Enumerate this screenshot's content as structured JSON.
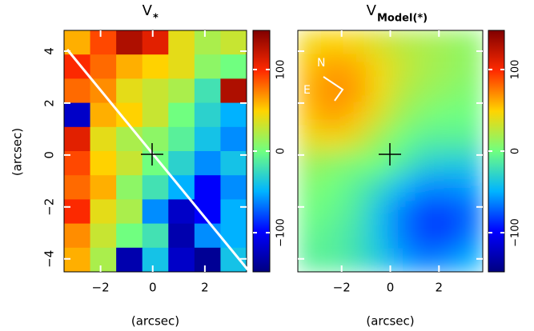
{
  "chart_data": [
    {
      "type": "heatmap",
      "title": "V",
      "title_subscript": "*",
      "xlabel": "(arcsec)",
      "ylabel": "(arcsec)",
      "xlim": [
        -3.4,
        3.6
      ],
      "ylim": [
        -4.5,
        4.8
      ],
      "xticks": [
        -2,
        0,
        2
      ],
      "yticks": [
        -4,
        -2,
        0,
        2,
        4
      ],
      "values": [
        [
          60,
          90,
          130,
          110,
          40,
          20,
          30
        ],
        [
          100,
          80,
          60,
          50,
          40,
          10,
          0
        ],
        [
          80,
          70,
          40,
          30,
          20,
          -20,
          130
        ],
        [
          -120,
          60,
          50,
          30,
          0,
          -30,
          -50
        ],
        [
          110,
          40,
          20,
          10,
          -10,
          -40,
          -60
        ],
        [
          90,
          50,
          30,
          0,
          -30,
          -60,
          -40
        ],
        [
          80,
          60,
          10,
          -20,
          -50,
          -100,
          -60
        ],
        [
          100,
          40,
          20,
          -60,
          -120,
          -100,
          -50
        ],
        [
          70,
          30,
          0,
          -20,
          -130,
          -60,
          -50
        ],
        [
          60,
          20,
          -130,
          -40,
          -120,
          -140,
          -40
        ]
      ],
      "clim": [
        -148,
        148
      ],
      "cticks": [
        -100,
        0,
        100
      ],
      "colormap": [
        "#000080",
        "#0000ff",
        "#00b4ff",
        "#70ff80",
        "#ffd400",
        "#ff2a00",
        "#800000"
      ],
      "smooth": false
    },
    {
      "type": "heatmap",
      "title": "V",
      "title_subscript": "Model(*)",
      "xlabel": "(arcsec)",
      "xlim": [
        -3.8,
        3.8
      ],
      "ylim": [
        -4.5,
        4.8
      ],
      "xticks": [
        -2,
        0,
        2
      ],
      "yticks": [
        -4,
        -2,
        0,
        2,
        4
      ],
      "values": [
        [
          45,
          50,
          45,
          35,
          25,
          20,
          15,
          10
        ],
        [
          55,
          65,
          60,
          45,
          30,
          20,
          15,
          10
        ],
        [
          60,
          70,
          65,
          45,
          25,
          15,
          10,
          5
        ],
        [
          55,
          65,
          55,
          35,
          15,
          5,
          0,
          0
        ],
        [
          40,
          45,
          35,
          15,
          0,
          -10,
          -10,
          -10
        ],
        [
          15,
          10,
          5,
          0,
          -15,
          -30,
          -35,
          -35
        ],
        [
          5,
          0,
          -10,
          -25,
          -45,
          -60,
          -60,
          -55
        ],
        [
          0,
          -5,
          -15,
          -40,
          -65,
          -80,
          -80,
          -70
        ],
        [
          -5,
          -10,
          -20,
          -40,
          -65,
          -80,
          -80,
          -65
        ],
        [
          -10,
          -10,
          -20,
          -35,
          -55,
          -65,
          -60,
          -50
        ]
      ],
      "clim": [
        -148,
        148
      ],
      "cticks": [
        -100,
        0,
        100
      ],
      "colormap": [
        "#000080",
        "#0000ff",
        "#00b4ff",
        "#70ff80",
        "#ffd400",
        "#ff2a00",
        "#800000"
      ],
      "smooth": true,
      "annotations": [
        "N",
        "E"
      ]
    }
  ]
}
